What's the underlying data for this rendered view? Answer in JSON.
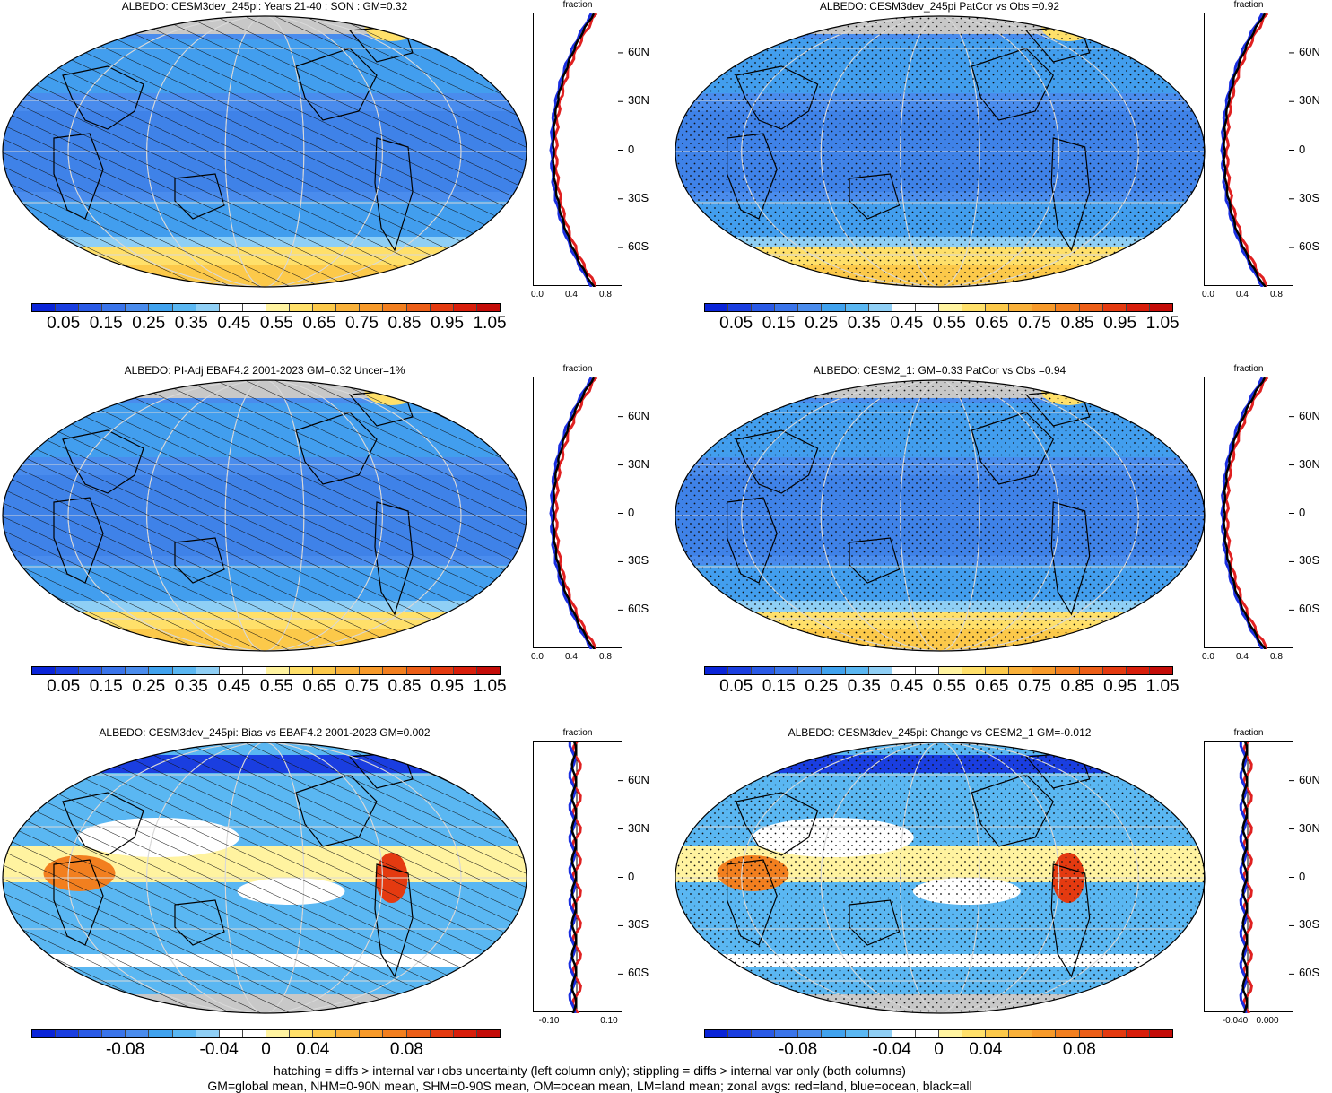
{
  "panels": [
    {
      "title": "ALBEDO: CESM3dev_245pi: Years 21-40 : SON : GM=0.32",
      "type": "abs",
      "pattern": "hatch",
      "zx": [
        "0.0",
        "0.4",
        "0.8"
      ]
    },
    {
      "title": "ALBEDO: CESM3dev_245pi PatCor vs Obs =0.92",
      "type": "abs",
      "pattern": "dots",
      "zx": [
        "0.0",
        "0.4",
        "0.8"
      ]
    },
    {
      "title": "ALBEDO: PI-Adj EBAF4.2 2001-2023 GM=0.32 Uncer=1%",
      "type": "abs",
      "pattern": "hatch",
      "zx": [
        "0.0",
        "0.4",
        "0.8"
      ]
    },
    {
      "title": "ALBEDO: CESM2_1: GM=0.33 PatCor vs Obs =0.94",
      "type": "abs",
      "pattern": "dots",
      "zx": [
        "0.0",
        "0.4",
        "0.8"
      ]
    },
    {
      "title": "ALBEDO: CESM3dev_245pi: Bias vs EBAF4.2 2001-2023  GM=0.002",
      "type": "diff",
      "pattern": "hatch",
      "zx": [
        "-0.10",
        "0.10"
      ]
    },
    {
      "title": "ALBEDO: CESM3dev_245pi: Change vs CESM2_1 GM=-0.012",
      "type": "diff",
      "pattern": "dots",
      "zx": [
        "-0.040",
        "0.000"
      ]
    }
  ],
  "zonal": {
    "title": "fraction",
    "lat_labels": [
      "60N",
      "30N",
      "0",
      "30S",
      "60S"
    ]
  },
  "colorbars": {
    "abs_labels": [
      "0.05",
      "0.15",
      "0.25",
      "0.35",
      "0.45",
      "0.55",
      "0.65",
      "0.75",
      "0.85",
      "0.95",
      "1.05"
    ],
    "diff_labels": [
      "-0.08",
      "-0.04",
      "0",
      "0.04",
      "0.08"
    ]
  },
  "palette": [
    "#0a24d8",
    "#1a3ee0",
    "#2a5ae6",
    "#3a74ea",
    "#4a8ced",
    "#40a2ee",
    "#5ab7f2",
    "#8fcff5",
    "#ffffff",
    "#ffffff",
    "#fff3a0",
    "#ffe06a",
    "#fcc94a",
    "#f9b13a",
    "#f79a2a",
    "#f27f1f",
    "#ec5e17",
    "#e43a10",
    "#d81e0b",
    "#c40c08"
  ],
  "colors": {
    "land": "#e02020",
    "ocean": "#1a2ee0",
    "all": "#000000"
  },
  "footer": {
    "line1": "hatching = diffs > internal var+obs uncertainty (left column only); stippling = diffs > internal var only (both columns)",
    "line2": "GM=global mean, NHM=0-90N mean, SHM=0-90S mean, OM=ocean mean, LM=land mean; zonal avgs: red=land, blue=ocean, black=all"
  }
}
